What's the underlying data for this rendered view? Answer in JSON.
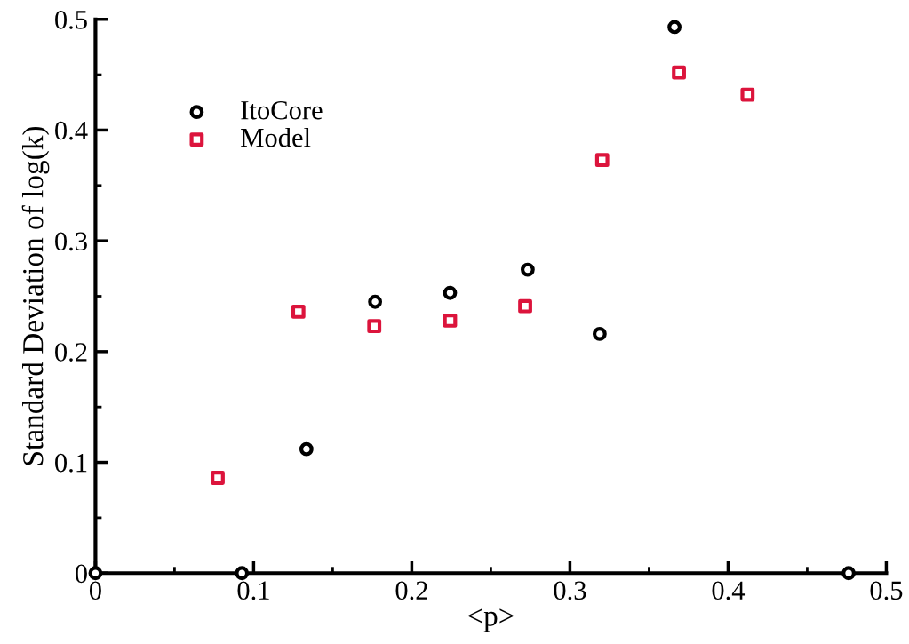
{
  "chart_data": {
    "type": "scatter",
    "xlabel": "<p>",
    "ylabel": "Standard Deviation of log(k)",
    "series": [
      {
        "name": "ItoCore",
        "color": "#000000",
        "marker": "circle",
        "x": [
          0,
          0.0926,
          0.1334,
          0.1768,
          0.2242,
          0.2733,
          0.3188,
          0.3661,
          0.4762
        ],
        "values": [
          0,
          0,
          0.112,
          0.245,
          0.253,
          0.274,
          0.216,
          0.493,
          0
        ]
      },
      {
        "name": "Model",
        "color": "#dc143c",
        "marker": "square",
        "x": [
          0.0773,
          0.1283,
          0.1763,
          0.2242,
          0.2717,
          0.3204,
          0.3689,
          0.4123
        ],
        "values": [
          0.086,
          0.236,
          0.223,
          0.228,
          0.241,
          0.373,
          0.452,
          0.432
        ]
      }
    ],
    "xlim": [
      0,
      0.5
    ],
    "ylim": [
      0,
      0.5
    ],
    "xticks": [
      0,
      0.1,
      0.2,
      0.3,
      0.4,
      0.5
    ],
    "yticks": [
      0,
      0.1,
      0.2,
      0.3,
      0.4,
      0.5
    ],
    "grid": false,
    "legend": "top left"
  }
}
